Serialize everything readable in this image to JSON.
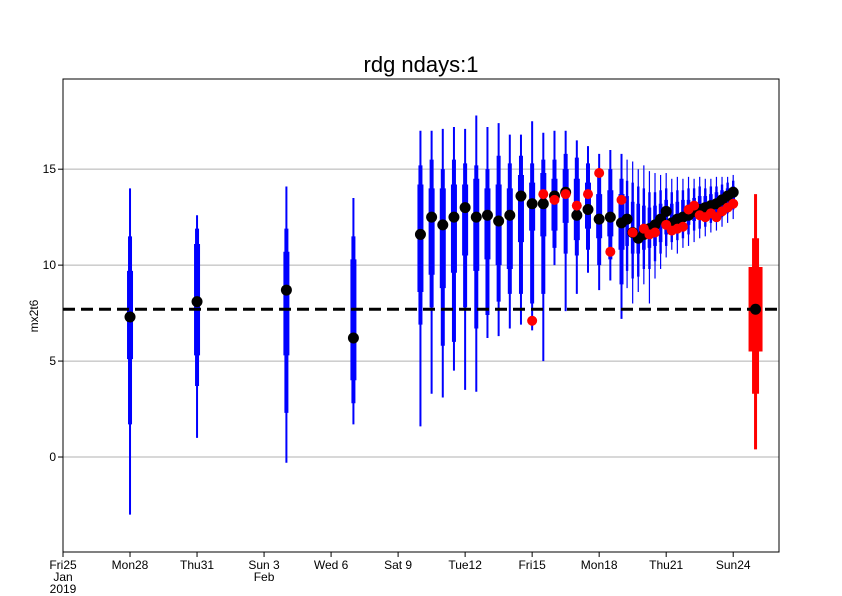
{
  "chart_data": {
    "type": "ensemble-box",
    "title": "rdg ndays:1",
    "y_label": "mx2t6",
    "ylim": [
      -4.95,
      19.7
    ],
    "yticks": [
      0,
      5,
      10,
      15
    ],
    "xlim": [
      0,
      32.05
    ],
    "xticks": [
      {
        "value": 0,
        "label": "Fri25",
        "color": "#000000"
      },
      {
        "value": 3,
        "label": "Mon28",
        "color": "#000000"
      },
      {
        "value": 6,
        "label": "Thu31",
        "color": "#000000"
      },
      {
        "value": 9,
        "label": "Sun 3",
        "color": "#ff0000"
      },
      {
        "value": 12,
        "label": "Wed 6",
        "color": "#000000"
      },
      {
        "value": 15,
        "label": "Sat 9",
        "color": "#000000"
      },
      {
        "value": 18,
        "label": "Tue12",
        "color": "#000000"
      },
      {
        "value": 21,
        "label": "Fri15",
        "color": "#000000"
      },
      {
        "value": 24,
        "label": "Mon18",
        "color": "#000000"
      },
      {
        "value": 27,
        "label": "Thu21",
        "color": "#000000"
      },
      {
        "value": 30,
        "label": "Sun24",
        "color": "#ff0000"
      }
    ],
    "month_labels": [
      {
        "value": 0,
        "label": "Jan"
      },
      {
        "value": 9,
        "label": "Feb"
      }
    ],
    "year_labels": [
      {
        "value": 0,
        "label": "2019"
      }
    ],
    "grid": true,
    "reference_line": 7.7,
    "ensemble": {
      "color": "#0000ff",
      "mean_color": "#000000",
      "x": [
        3,
        6,
        10,
        13,
        16,
        16.5,
        17,
        17.5,
        18,
        18.5,
        19,
        19.5,
        20,
        20.5,
        21,
        21.5,
        22,
        22.5,
        23,
        23.5,
        24,
        24.5,
        25,
        25.25,
        25.5,
        25.75,
        26,
        26.25,
        26.5,
        26.75,
        27,
        27.25,
        27.5,
        27.75,
        28,
        28.25,
        28.5,
        28.75,
        29,
        29.25,
        29.5,
        29.75,
        30
      ],
      "min": [
        -3,
        1,
        -0.3,
        1.7,
        1.6,
        3.3,
        3.1,
        4.5,
        3.5,
        3.4,
        6.2,
        6.3,
        6.7,
        6.9,
        6.6,
        5.0,
        10.0,
        7.6,
        8.5,
        9.6,
        8.7,
        9.2,
        7.2,
        8.8,
        8.0,
        8.6,
        9.0,
        8.0,
        9.3,
        9.8,
        10.4,
        10.8,
        10.6,
        10.9,
        11.0,
        11.2,
        11.4,
        11.5,
        11.7,
        11.8,
        12.0,
        12.2,
        12.4
      ],
      "p10": [
        1.7,
        3.7,
        2.3,
        2.8,
        6.9,
        7.8,
        5.8,
        6.0,
        7.8,
        6.7,
        7.4,
        8.1,
        8.5,
        8.5,
        8.0,
        8.5,
        10.9,
        10.6,
        10.5,
        10.8,
        10.0,
        10.3,
        9.0,
        9.7,
        9.3,
        9.4,
        9.8,
        9.8,
        10.2,
        10.6,
        11.0,
        11.2,
        11.3,
        11.4,
        11.6,
        11.8,
        11.9,
        12.0,
        12.2,
        12.3,
        12.5,
        12.7,
        12.9
      ],
      "p25": [
        5.1,
        5.3,
        5.3,
        4.0,
        8.6,
        9.5,
        8.8,
        9.6,
        10.5,
        9.7,
        10.3,
        10.0,
        9.8,
        11.2,
        11.8,
        11.5,
        11.8,
        12.2,
        11.3,
        11.9,
        11.4,
        11.5,
        10.8,
        11.0,
        10.6,
        10.6,
        10.8,
        10.9,
        11.0,
        11.2,
        11.6,
        11.8,
        11.9,
        12.0,
        12.1,
        12.3,
        12.4,
        12.5,
        12.6,
        12.8,
        12.9,
        13.1,
        13.3
      ],
      "p75": [
        9.7,
        11.1,
        10.7,
        10.3,
        14.2,
        14.0,
        14.0,
        14.2,
        14.2,
        14.5,
        14.0,
        14.2,
        14.0,
        14.7,
        14.3,
        14.8,
        14.5,
        15.0,
        14.5,
        14.3,
        13.7,
        13.9,
        13.7,
        13.6,
        13.3,
        13.2,
        13.1,
        13.0,
        13.1,
        13.2,
        13.4,
        13.2,
        13.3,
        13.4,
        13.4,
        13.5,
        13.6,
        13.6,
        13.7,
        13.8,
        13.9,
        14.0,
        14.1
      ],
      "p90": [
        11.5,
        11.9,
        11.9,
        11.5,
        15.2,
        15.5,
        15.0,
        15.5,
        15.3,
        15.2,
        15.0,
        15.7,
        15.3,
        15.7,
        15.3,
        15.5,
        15.5,
        15.8,
        15.6,
        15.3,
        14.8,
        15.0,
        14.5,
        14.4,
        14.3,
        14.1,
        14.0,
        13.8,
        13.8,
        13.9,
        14.0,
        13.8,
        13.9,
        13.9,
        14.0,
        14.0,
        14.1,
        14.0,
        14.1,
        14.1,
        14.2,
        14.3,
        14.4
      ],
      "max": [
        14,
        12.6,
        14.1,
        13.5,
        17.0,
        17.0,
        17.1,
        17.2,
        17.1,
        17.8,
        17.2,
        17.4,
        16.8,
        16.8,
        17.5,
        16.9,
        17.0,
        17.0,
        16.5,
        16.2,
        15.8,
        16.0,
        15.8,
        15.5,
        15.4,
        15.0,
        15.2,
        14.9,
        14.8,
        14.7,
        14.8,
        14.5,
        14.6,
        14.5,
        14.6,
        14.5,
        14.6,
        14.5,
        14.5,
        14.6,
        14.6,
        14.6,
        14.7
      ],
      "mean": [
        7.3,
        8.1,
        8.7,
        6.2,
        11.6,
        12.5,
        12.1,
        12.5,
        13.0,
        12.5,
        12.6,
        12.3,
        12.6,
        13.6,
        13.2,
        13.2,
        13.6,
        13.8,
        12.6,
        12.9,
        12.4,
        12.5,
        12.2,
        12.4,
        11.7,
        11.4,
        11.6,
        11.9,
        12.1,
        12.4,
        12.8,
        12.2,
        12.4,
        12.5,
        12.6,
        12.8,
        12.9,
        13.0,
        13.1,
        13.2,
        13.4,
        13.6,
        13.8
      ]
    },
    "climatology": {
      "color": "#ff0000",
      "mean_color": "#000000",
      "x": [
        31
      ],
      "min": [
        0.4
      ],
      "p10": [
        3.3
      ],
      "p25": [
        5.5
      ],
      "p75": [
        9.9
      ],
      "p90": [
        11.4
      ],
      "max": [
        13.7
      ],
      "mean": [
        7.7
      ]
    },
    "observations": {
      "color": "#ff0000",
      "x": [
        21,
        21.5,
        22,
        22.5,
        23,
        23.5,
        24,
        24.5,
        25,
        25.5,
        26,
        26.25,
        26.5,
        27,
        27.25,
        27.5,
        27.75,
        28,
        28.25,
        28.5,
        28.75,
        29,
        29.25,
        29.5,
        29.75,
        30
      ],
      "values": [
        7.1,
        13.7,
        13.4,
        13.7,
        13.1,
        13.7,
        14.8,
        10.7,
        13.4,
        11.7,
        11.9,
        11.6,
        11.7,
        12.1,
        11.8,
        11.9,
        12.0,
        12.9,
        13.1,
        12.6,
        12.5,
        12.7,
        12.5,
        12.8,
        13.0,
        13.2
      ]
    }
  }
}
